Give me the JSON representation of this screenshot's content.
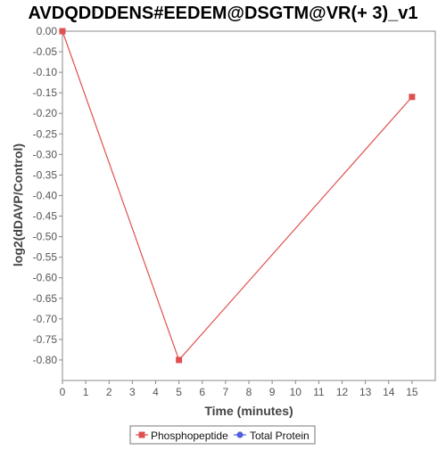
{
  "chart_data": {
    "type": "line",
    "title": "AVDQDDDENS#EEDEM@DSGTM@VR(+ 3)_v1",
    "xlabel": "Time (minutes)",
    "ylabel": "log2(dDAVP/Control)",
    "xlim": [
      0,
      16
    ],
    "ylim": [
      -0.85,
      0.0
    ],
    "x_ticks": [
      "0",
      "1",
      "2",
      "3",
      "4",
      "5",
      "6",
      "7",
      "8",
      "9",
      "10",
      "11",
      "12",
      "13",
      "14",
      "15"
    ],
    "y_ticks": [
      "0.00",
      "-0.05",
      "-0.10",
      "-0.15",
      "-0.20",
      "-0.25",
      "-0.30",
      "-0.35",
      "-0.40",
      "-0.45",
      "-0.50",
      "-0.55",
      "-0.60",
      "-0.65",
      "-0.70",
      "-0.75",
      "-0.80"
    ],
    "grid": false,
    "legend_position": "bottom-center",
    "series": [
      {
        "name": "Phosphopeptide",
        "color": "#e05050",
        "marker": "square",
        "points": [
          {
            "x": 0,
            "y": 0.0
          },
          {
            "x": 5,
            "y": -0.8
          },
          {
            "x": 15,
            "y": -0.16
          }
        ]
      },
      {
        "name": "Total Protein",
        "color": "#5060e0",
        "marker": "circle",
        "points": []
      }
    ]
  }
}
